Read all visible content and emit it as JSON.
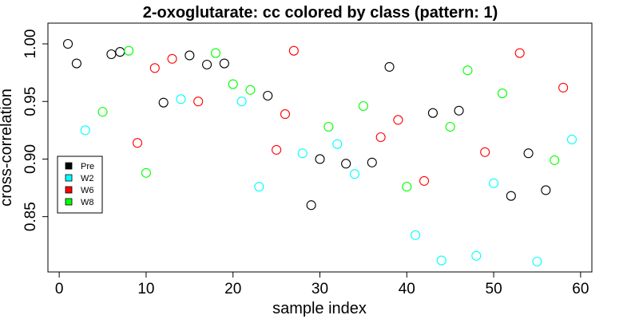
{
  "chart_data": {
    "type": "scatter",
    "title": "2-oxoglutarate: cc colored by class (pattern: 1)",
    "xlabel": "sample index",
    "ylabel": "cross-correlation",
    "xlim": [
      -1.3,
      61.3
    ],
    "ylim": [
      0.802,
      1.018
    ],
    "xticks": [
      0,
      10,
      20,
      30,
      40,
      50,
      60
    ],
    "yticks": [
      0.85,
      0.9,
      0.95,
      1.0
    ],
    "yticklabels": [
      "0.85",
      "0.90",
      "0.95",
      "1.00"
    ],
    "grid": false,
    "legend_position": "left",
    "series": [
      {
        "name": "Pre",
        "color": "#000000",
        "x": [
          1,
          2,
          6,
          7,
          12,
          15,
          17,
          19,
          24,
          29,
          30,
          33,
          36,
          38,
          43,
          46,
          52,
          54,
          56
        ],
        "y": [
          1.0,
          0.983,
          0.991,
          0.993,
          0.949,
          0.99,
          0.982,
          0.983,
          0.955,
          0.86,
          0.9,
          0.896,
          0.897,
          0.98,
          0.94,
          0.942,
          0.868,
          0.905,
          0.873
        ]
      },
      {
        "name": "W2",
        "color": "#00ffff",
        "x": [
          3,
          14,
          21,
          23,
          28,
          32,
          34,
          41,
          44,
          48,
          50,
          55,
          59
        ],
        "y": [
          0.925,
          0.952,
          0.95,
          0.876,
          0.905,
          0.913,
          0.887,
          0.834,
          0.812,
          0.816,
          0.879,
          0.811,
          0.917
        ]
      },
      {
        "name": "W6",
        "color": "#ff0000",
        "x": [
          9,
          11,
          13,
          16,
          25,
          26,
          27,
          37,
          39,
          42,
          49,
          53,
          58
        ],
        "y": [
          0.914,
          0.979,
          0.987,
          0.95,
          0.908,
          0.939,
          0.994,
          0.919,
          0.934,
          0.881,
          0.906,
          0.992,
          0.962
        ]
      },
      {
        "name": "W8",
        "color": "#00ff00",
        "x": [
          5,
          8,
          10,
          18,
          20,
          22,
          31,
          35,
          40,
          45,
          47,
          51,
          57
        ],
        "y": [
          0.941,
          0.994,
          0.888,
          0.992,
          0.965,
          0.96,
          0.928,
          0.946,
          0.876,
          0.928,
          0.977,
          0.957,
          0.899
        ]
      }
    ]
  }
}
